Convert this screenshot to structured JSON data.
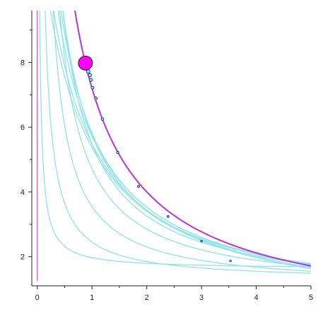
{
  "chart_data": {
    "type": "line",
    "title": "",
    "xlabel": "",
    "ylabel": "",
    "xlim": [
      -0.1,
      5.0
    ],
    "ylim": [
      1.1,
      9.6
    ],
    "grid": false,
    "x_ticks": [
      0,
      1,
      2,
      3,
      4,
      5
    ],
    "x_tick_labels": [
      "0",
      "1",
      "2",
      "3",
      "4",
      "5"
    ],
    "y_ticks": [
      2,
      4,
      6,
      8
    ],
    "y_tick_labels": [
      "2",
      "4",
      "6",
      "8"
    ],
    "colors": {
      "cyan_curves": "#8fe3ea",
      "magenta_curve": "#bb33dd",
      "vertical_line": "#e040c0",
      "highlight_point": "#ff00ff",
      "points_fill": "#8fe3ea",
      "points_stroke": "#1c3f7a"
    },
    "curve_family": {
      "form": "y = a / (x + c) + b",
      "x_range": [
        0.0,
        5.0
      ],
      "curves": [
        {
          "a": 0.35,
          "b": 1.62,
          "c": 0.0
        },
        {
          "a": 1.2,
          "b": 1.25,
          "c": 0.0
        },
        {
          "a": 2.5,
          "b": 1.05,
          "c": 0.0
        },
        {
          "a": 4.0,
          "b": 0.9,
          "c": 0.05
        },
        {
          "a": 5.5,
          "b": 0.7,
          "c": 0.15
        },
        {
          "a": 6.5,
          "b": 0.55,
          "c": 0.25
        },
        {
          "a": 7.5,
          "b": 0.38,
          "c": 0.38
        },
        {
          "a": 8.2,
          "b": 0.25,
          "c": 0.5
        },
        {
          "a": 8.7,
          "b": 0.12,
          "c": 0.62
        },
        {
          "a": 9.2,
          "b": 0.02,
          "c": 0.72
        }
      ]
    },
    "magenta_curve": {
      "a": 9.0,
      "b": 0.0,
      "c": 0.25
    },
    "vertical_line_x": 0.0,
    "highlight_point": {
      "x": 0.88,
      "y": 7.98
    },
    "points": [
      {
        "x": 0.93,
        "y": 7.72,
        "r": 2.6
      },
      {
        "x": 0.96,
        "y": 7.61,
        "r": 2.4
      },
      {
        "x": 0.98,
        "y": 7.46,
        "r": 2.2
      },
      {
        "x": 1.01,
        "y": 7.22,
        "r": 2.0
      },
      {
        "x": 1.07,
        "y": 6.89,
        "r": 1.9
      },
      {
        "x": 1.19,
        "y": 6.25,
        "r": 1.8
      },
      {
        "x": 1.47,
        "y": 5.22,
        "r": 1.6
      },
      {
        "x": 1.85,
        "y": 4.17,
        "r": 1.5
      },
      {
        "x": 2.39,
        "y": 3.24,
        "r": 1.4
      },
      {
        "x": 3.0,
        "y": 2.48,
        "r": 1.3
      },
      {
        "x": 3.53,
        "y": 1.87,
        "r": 1.2
      }
    ]
  }
}
